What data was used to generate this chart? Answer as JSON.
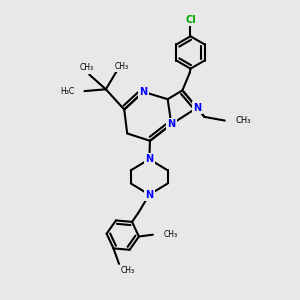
{
  "bg_color": "#e8e8e8",
  "bond_color": "#000000",
  "N_color": "#0000ff",
  "Cl_color": "#00aa00",
  "lw": 1.5,
  "xlim": [
    1.0,
    9.0
  ],
  "ylim": [
    1.5,
    9.5
  ]
}
